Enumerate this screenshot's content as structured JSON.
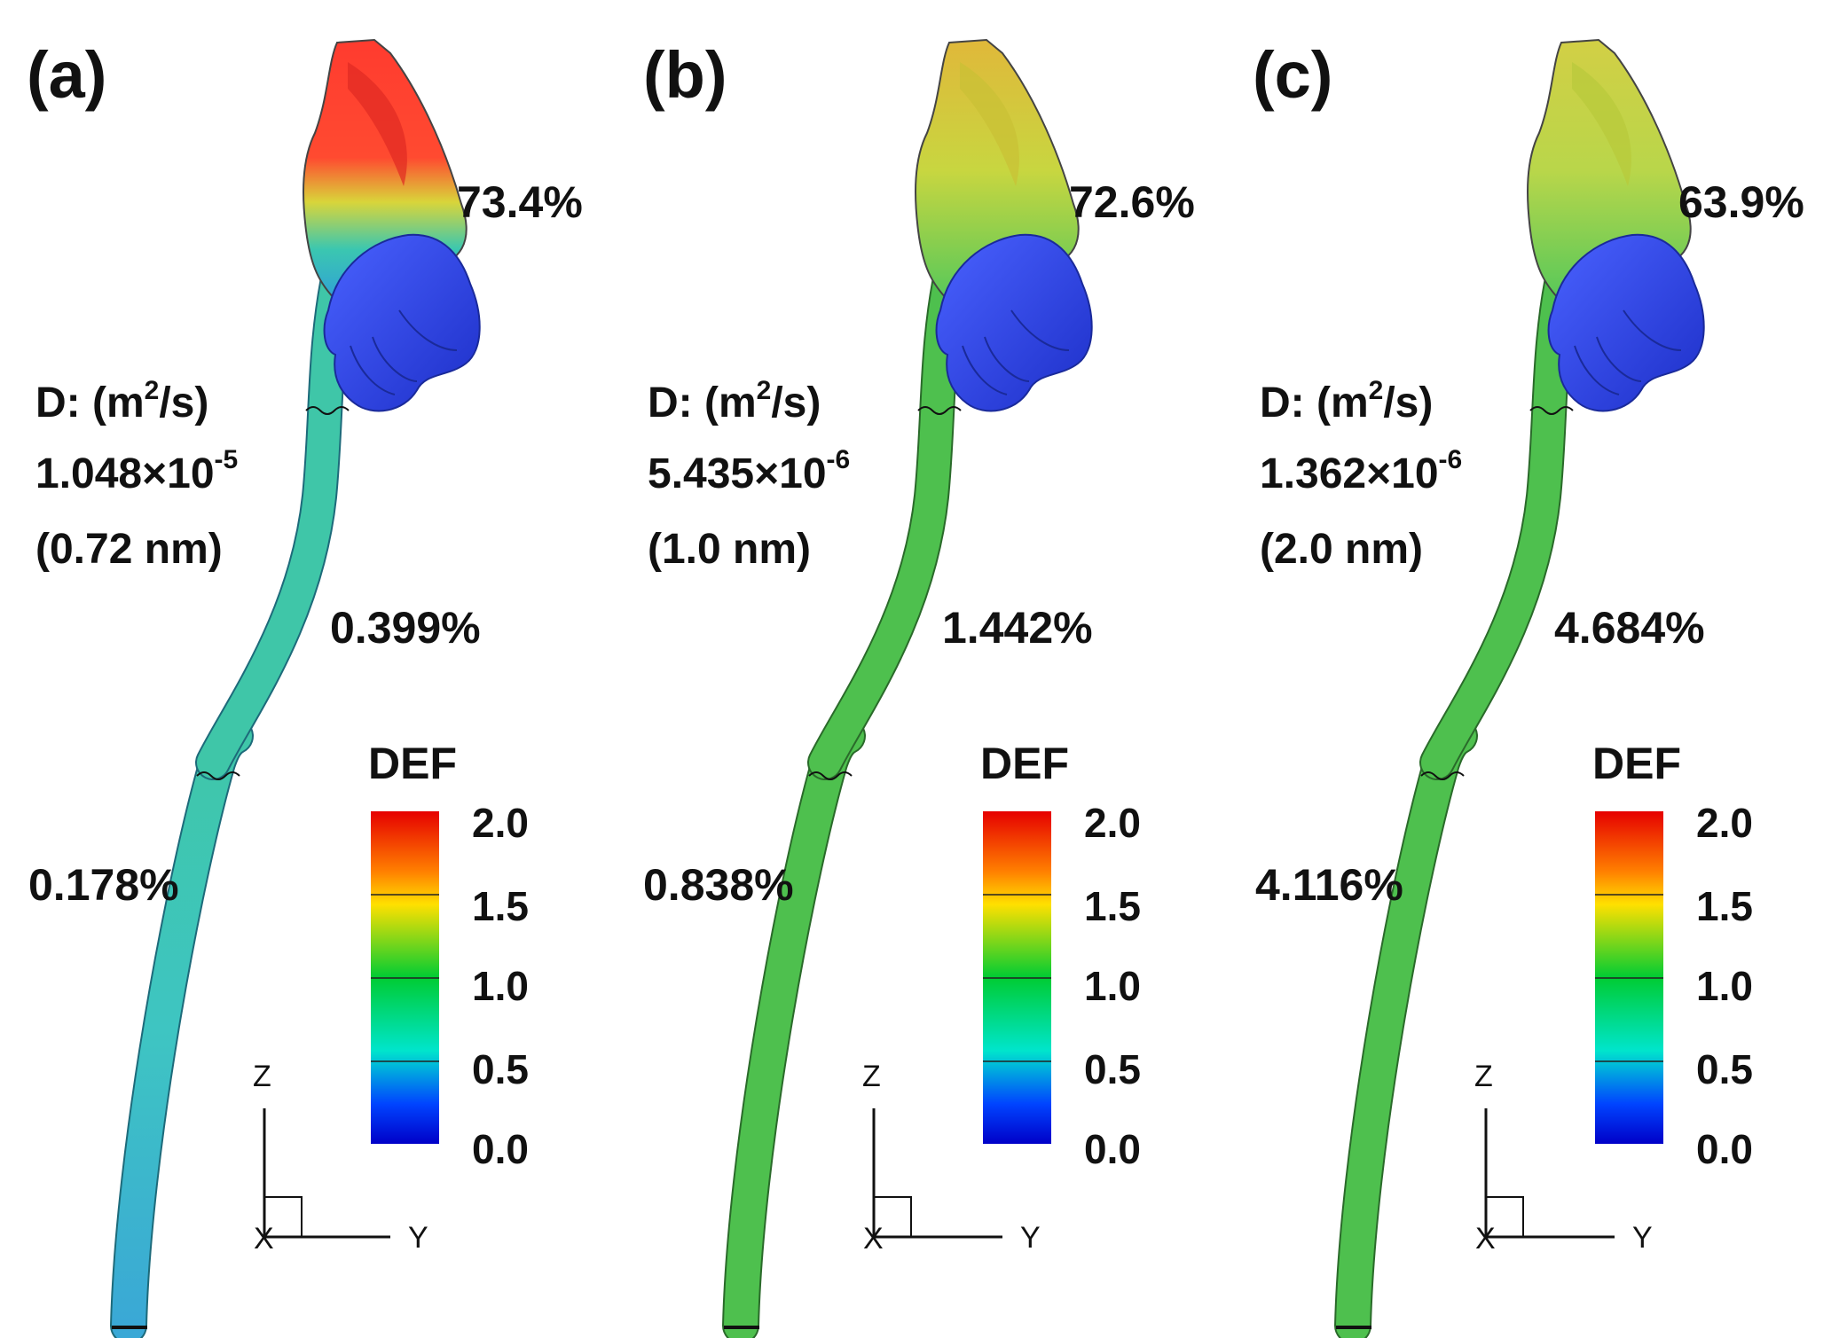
{
  "colorbar": {
    "title": "DEF",
    "ticks": [
      "2.0",
      "1.5",
      "1.0",
      "0.5",
      "0.0"
    ],
    "stops": [
      "#e60000",
      "#ff7f00",
      "#ffe000",
      "#00cc33",
      "#00e5cc",
      "#0044ff",
      "#0000c8"
    ]
  },
  "axes": {
    "z": "Z",
    "y": "Y",
    "x": "X"
  },
  "colors": {
    "stem_a": "#40c8c8",
    "stem_b": "#4ec04e",
    "head_red": "#ff3b2f",
    "head_yellow": "#dcd23c",
    "lower_blue": "#2f44e6"
  },
  "panels": [
    {
      "label": "(a)",
      "head_percent": "73.4%",
      "mid_percent": "0.399%",
      "low_percent": "0.178%",
      "d_label": "D: (m",
      "d_sup": "2",
      "d_unit": "/s)",
      "d_mantissa": "1.048×10",
      "d_exp": "-5",
      "diameter": "(0.72 nm)"
    },
    {
      "label": "(b)",
      "head_percent": "72.6%",
      "mid_percent": "1.442%",
      "low_percent": "0.838%",
      "d_label": "D: (m",
      "d_sup": "2",
      "d_unit": "/s)",
      "d_mantissa": "5.435×10",
      "d_exp": "-6",
      "diameter": "(1.0 nm)"
    },
    {
      "label": "(c)",
      "head_percent": "63.9%",
      "mid_percent": "4.684%",
      "low_percent": "4.116%",
      "d_label": "D: (m",
      "d_sup": "2",
      "d_unit": "/s)",
      "d_mantissa": "1.362×10",
      "d_exp": "-6",
      "diameter": "(2.0 nm)"
    }
  ]
}
